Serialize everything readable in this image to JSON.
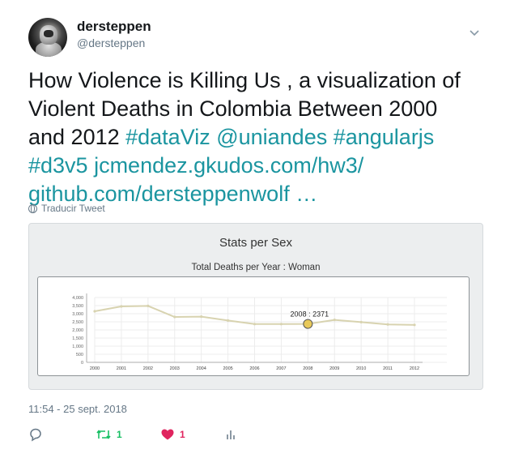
{
  "user": {
    "display_name": "dersteppen",
    "handle": "@dersteppen",
    "avatar": "astronaut-avatar"
  },
  "tweet": {
    "lines": [
      [
        {
          "text": "How Violence is Killing Us , a visualization of",
          "link": false
        }
      ],
      [
        {
          "text": "Violent Deaths in Colombia Between 2000",
          "link": false
        }
      ],
      [
        {
          "text": "and 2012  ",
          "link": false
        },
        {
          "text": "#dataViz @uniandes #angularjs",
          "link": true
        }
      ],
      [
        {
          "text": "#d3v5  jcmendez.gkudos.com/hw3/",
          "link": true
        }
      ],
      [
        {
          "text": "github.com/dersteppenwolf …",
          "link": true
        }
      ]
    ],
    "translate_label": "Traducir Tweet",
    "timestamp": "11:54 - 25 sept. 2018"
  },
  "card": {
    "title": "Stats per Sex",
    "subtitle": "Total Deaths per Year : Woman"
  },
  "actions": {
    "reply_icon": "reply-icon",
    "retweet_count": "1",
    "like_count": "1",
    "stats_icon": "bar-stats-icon"
  },
  "colors": {
    "link": "#1b95a0",
    "secondary_text": "#657786",
    "retweet": "#17bf63",
    "like": "#e0245e",
    "series_line": "#d8d3b0",
    "highlight_point": "#e8c95a"
  },
  "chart_data": {
    "type": "line",
    "title": "Total Deaths per Year : Woman",
    "x": [
      2000,
      2001,
      2002,
      2003,
      2004,
      2005,
      2006,
      2007,
      2008,
      2009,
      2010,
      2011,
      2012
    ],
    "y": [
      3150,
      3450,
      3480,
      2800,
      2820,
      2580,
      2360,
      2360,
      2371,
      2620,
      2480,
      2340,
      2310
    ],
    "yticks": [
      0,
      500,
      1000,
      1500,
      2000,
      2500,
      3000,
      3500,
      4000
    ],
    "ytick_labels": [
      "0",
      "500",
      "1,000",
      "1,500",
      "2,000",
      "2,500",
      "3,000",
      "3,500",
      "4,000"
    ],
    "ylim": [
      0,
      4000
    ],
    "grid": true,
    "annotation": {
      "x": 2008,
      "label": "2008 : 2371"
    }
  }
}
